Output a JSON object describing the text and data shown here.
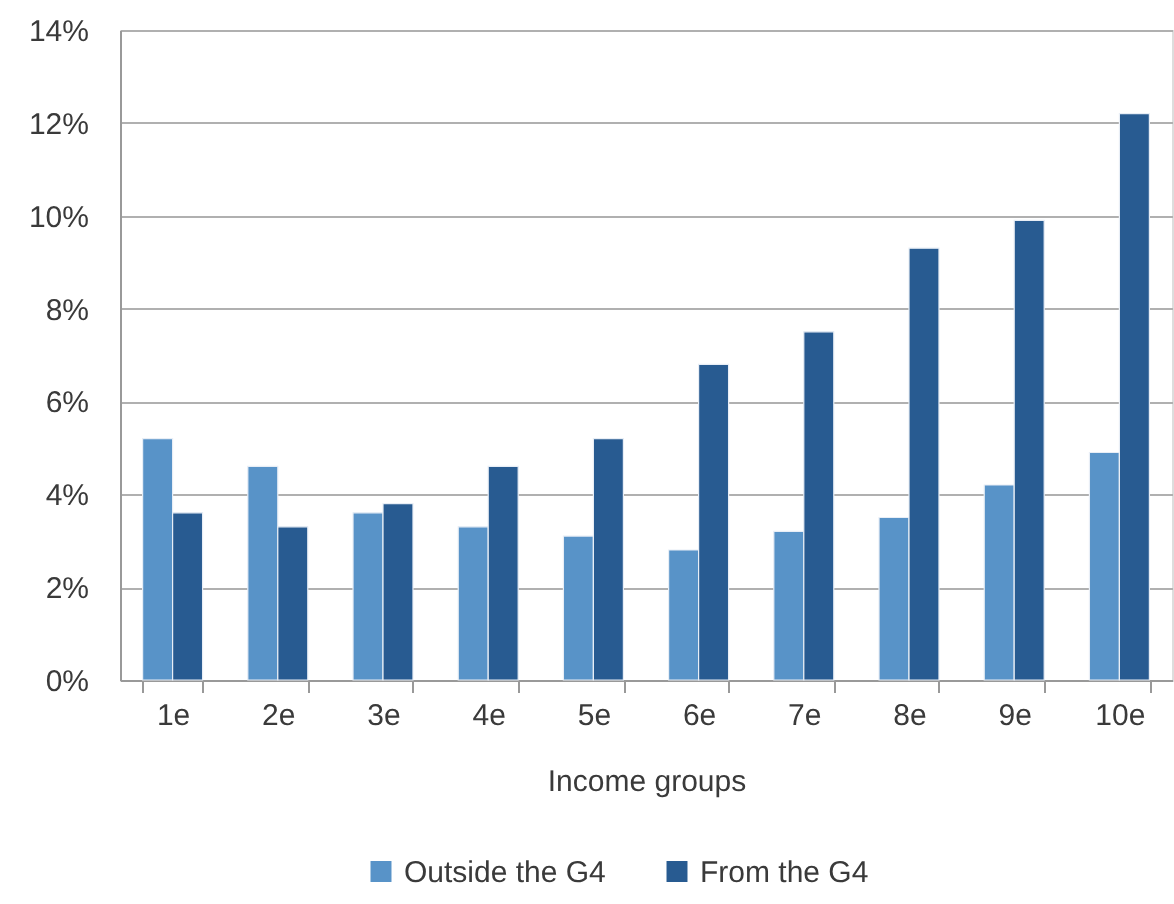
{
  "chart_data": {
    "type": "bar",
    "xlabel": "Income groups",
    "categories": [
      "1e",
      "2e",
      "3e",
      "4e",
      "5e",
      "6e",
      "7e",
      "8e",
      "9e",
      "10e"
    ],
    "series": [
      {
        "name": "Outside the G4",
        "color": "#5893c8",
        "values": [
          5.2,
          4.6,
          3.6,
          3.3,
          3.1,
          2.8,
          3.2,
          3.5,
          4.2,
          4.9
        ]
      },
      {
        "name": "From the G4",
        "color": "#285b91",
        "values": [
          3.6,
          3.3,
          3.8,
          4.6,
          5.2,
          6.8,
          7.5,
          9.3,
          9.9,
          12.2
        ]
      }
    ],
    "ylim": [
      0,
      14
    ],
    "yticks": [
      {
        "value": 0,
        "label": "0%"
      },
      {
        "value": 2,
        "label": "2%"
      },
      {
        "value": 4,
        "label": "4%"
      },
      {
        "value": 6,
        "label": "6%"
      },
      {
        "value": 8,
        "label": "8%"
      },
      {
        "value": 10,
        "label": "10%"
      },
      {
        "value": 12,
        "label": "12%"
      },
      {
        "value": 14,
        "label": "14%"
      }
    ],
    "grid": "y",
    "legend": "bottom"
  }
}
